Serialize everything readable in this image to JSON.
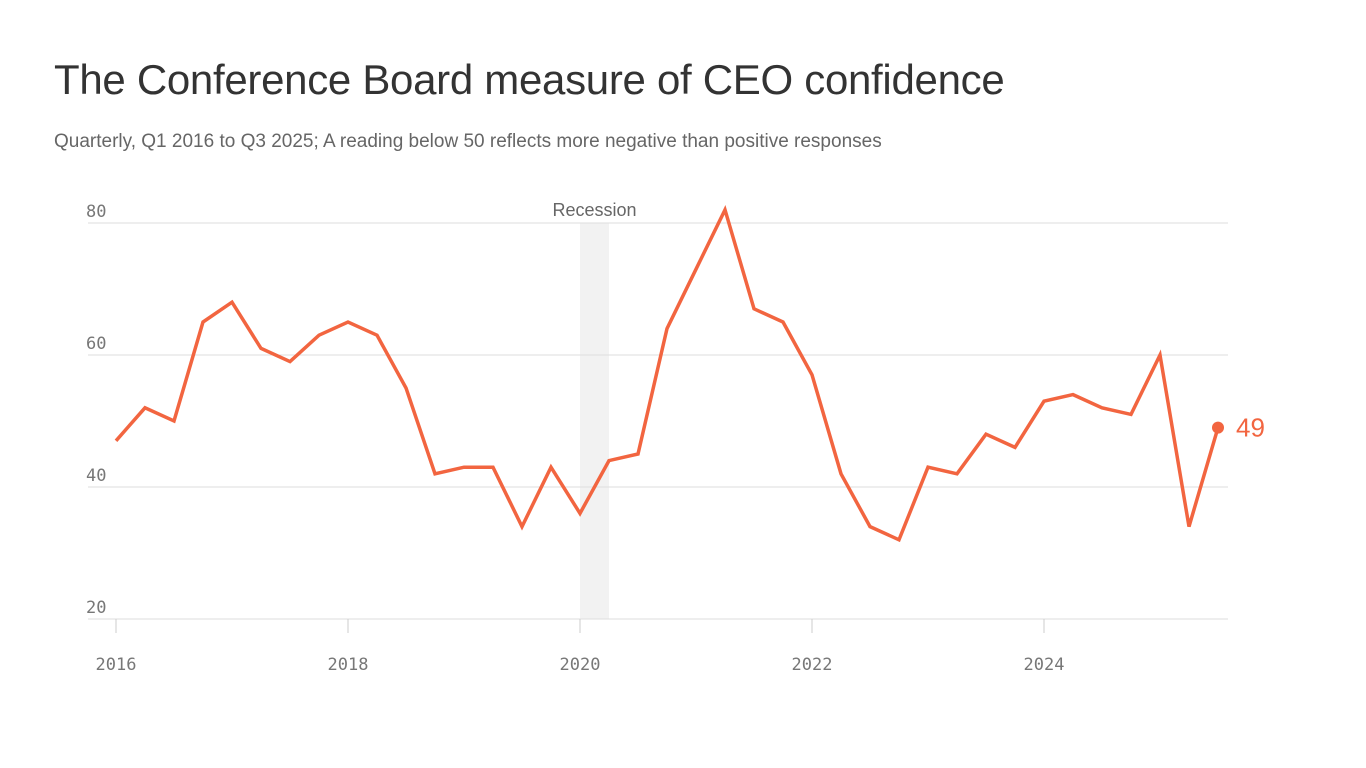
{
  "title": "The Conference Board measure of CEO confidence",
  "subtitle": "Quarterly, Q1 2016 to Q3 2025; A reading below 50 reflects more negative than positive responses",
  "chart_data": {
    "type": "line",
    "title": "The Conference Board measure of CEO confidence",
    "subtitle": "Quarterly, Q1 2016 to Q3 2025; A reading below 50 reflects more negative than positive responses",
    "xlabel": "",
    "ylabel": "",
    "x": [
      "2016-Q1",
      "2016-Q2",
      "2016-Q3",
      "2016-Q4",
      "2017-Q1",
      "2017-Q2",
      "2017-Q3",
      "2017-Q4",
      "2018-Q1",
      "2018-Q2",
      "2018-Q3",
      "2018-Q4",
      "2019-Q1",
      "2019-Q2",
      "2019-Q3",
      "2019-Q4",
      "2020-Q1",
      "2020-Q2",
      "2020-Q3",
      "2020-Q4",
      "2021-Q1",
      "2021-Q2",
      "2021-Q3",
      "2021-Q4",
      "2022-Q1",
      "2022-Q2",
      "2022-Q3",
      "2022-Q4",
      "2023-Q1",
      "2023-Q2",
      "2023-Q3",
      "2023-Q4",
      "2024-Q1",
      "2024-Q2",
      "2024-Q3",
      "2024-Q4",
      "2025-Q1",
      "2025-Q2",
      "2025-Q3"
    ],
    "series": [
      {
        "values": [
          47,
          52,
          50,
          65,
          68,
          61,
          59,
          63,
          65,
          63,
          55,
          42,
          43,
          43,
          34,
          43,
          36,
          44,
          45,
          64,
          73,
          82,
          67,
          65,
          57,
          42,
          34,
          32,
          43,
          42,
          48,
          46,
          53,
          54,
          52,
          51,
          60,
          34,
          49
        ],
        "color": "#f26540"
      }
    ],
    "xlim": [
      2016,
      2025.5
    ],
    "ylim": [
      20,
      80
    ],
    "x_ticks": [
      "2016",
      "2018",
      "2020",
      "2022",
      "2024"
    ],
    "x_tick_values": [
      2016,
      2018,
      2020,
      2022,
      2024
    ],
    "y_ticks": [
      "20",
      "40",
      "60",
      "80"
    ],
    "y_tick_values": [
      20,
      40,
      60,
      80
    ],
    "shaded_region": {
      "label": "Recession",
      "start": 2020.0,
      "end": 2020.25,
      "color": "#f2f2f2"
    },
    "end_label": "49",
    "grid": true,
    "grid_color": "#dddddd",
    "axis_color": "#cccccc"
  }
}
